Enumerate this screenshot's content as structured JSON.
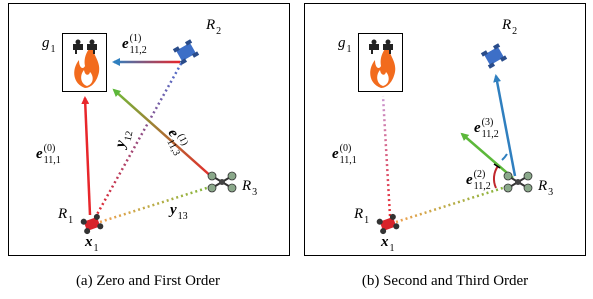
{
  "panels": [
    {
      "caption": "(a) Zero and First Order",
      "labels": [
        {
          "base": "g",
          "sub": "1"
        },
        {
          "base": "R",
          "sub": "2"
        },
        {
          "base": "R",
          "sub": "3"
        },
        {
          "base": "R",
          "sub": "1"
        },
        {
          "base": "x",
          "sub": "1"
        },
        {
          "base": "e",
          "sup": "(1)",
          "sub": "11,2"
        },
        {
          "base": "e",
          "sup": "(0)",
          "sub": "11,1"
        },
        {
          "base": "e",
          "sup": "(1)",
          "sub": "11,3"
        },
        {
          "base": "y",
          "sub": "12"
        },
        {
          "base": "y",
          "sub": "13"
        }
      ]
    },
    {
      "caption": "(b) Second and Third Order",
      "labels": [
        {
          "base": "g",
          "sub": "1"
        },
        {
          "base": "R",
          "sub": "2"
        },
        {
          "base": "R",
          "sub": "3"
        },
        {
          "base": "R",
          "sub": "1"
        },
        {
          "base": "x",
          "sub": "1"
        },
        {
          "base": "e",
          "sup": "(0)",
          "sub": "11,1"
        },
        {
          "base": "e",
          "sup": "(3)",
          "sub": "11,2"
        },
        {
          "base": "e",
          "sup": "(2)",
          "sub": "11,2"
        }
      ]
    }
  ]
}
